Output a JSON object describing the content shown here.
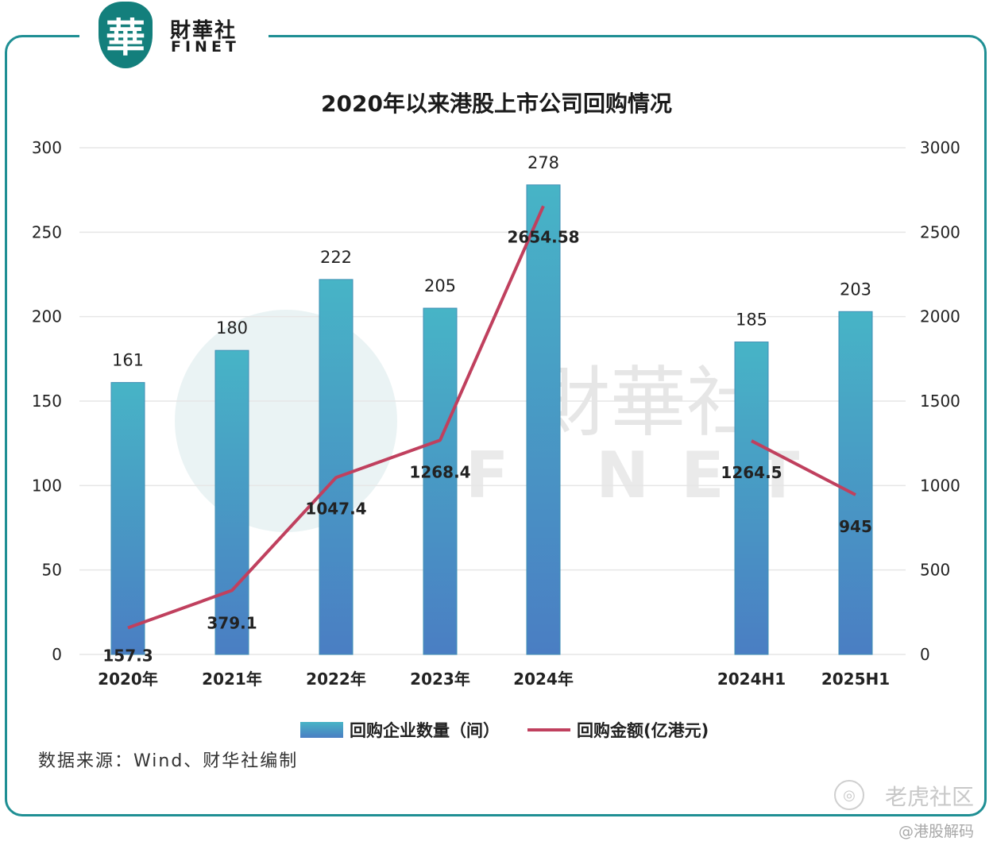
{
  "logo": {
    "seal_char": "華",
    "name_cn": "財華社",
    "name_en": "FINET"
  },
  "chart_data": {
    "type": "bar",
    "title": "2020年以来港股上市公司回购情况",
    "categories": [
      "2020年",
      "2021年",
      "2022年",
      "2023年",
      "2024年",
      "2024H1",
      "2025H1"
    ],
    "series": [
      {
        "name": "回购企业数量（间）",
        "type": "bar",
        "axis": "left",
        "values": [
          161,
          180,
          222,
          205,
          278,
          185,
          203
        ]
      },
      {
        "name": "回购金额(亿港元)",
        "type": "line",
        "axis": "right",
        "values": [
          157.3,
          379.1,
          1047.4,
          1268.4,
          2654.58,
          1264.5,
          945
        ]
      }
    ],
    "line_labels": [
      "157.3",
      "379.1",
      "1047.4",
      "1268.4",
      "2654.58",
      "1264.5",
      "945"
    ],
    "y_left": {
      "ylim": [
        0,
        300
      ],
      "ticks": [
        0,
        50,
        100,
        150,
        200,
        250,
        300
      ]
    },
    "y_right": {
      "ylim": [
        0,
        3000
      ],
      "ticks": [
        0,
        500,
        1000,
        1500,
        2000,
        2500,
        3000
      ]
    },
    "grid": true,
    "legend": "bottom",
    "colors": {
      "bar_top": "#47b4c6",
      "bar_bottom": "#4a7ec3",
      "line": "#c0405e",
      "grid": "#e6e6e6"
    }
  },
  "watermark": {
    "chart_cn": "財華社",
    "chart_en": "FINET"
  },
  "source": "数据来源：Wind、财华社编制",
  "corner_watermark": {
    "name": "老虎社区",
    "sub": "@港股解码"
  }
}
